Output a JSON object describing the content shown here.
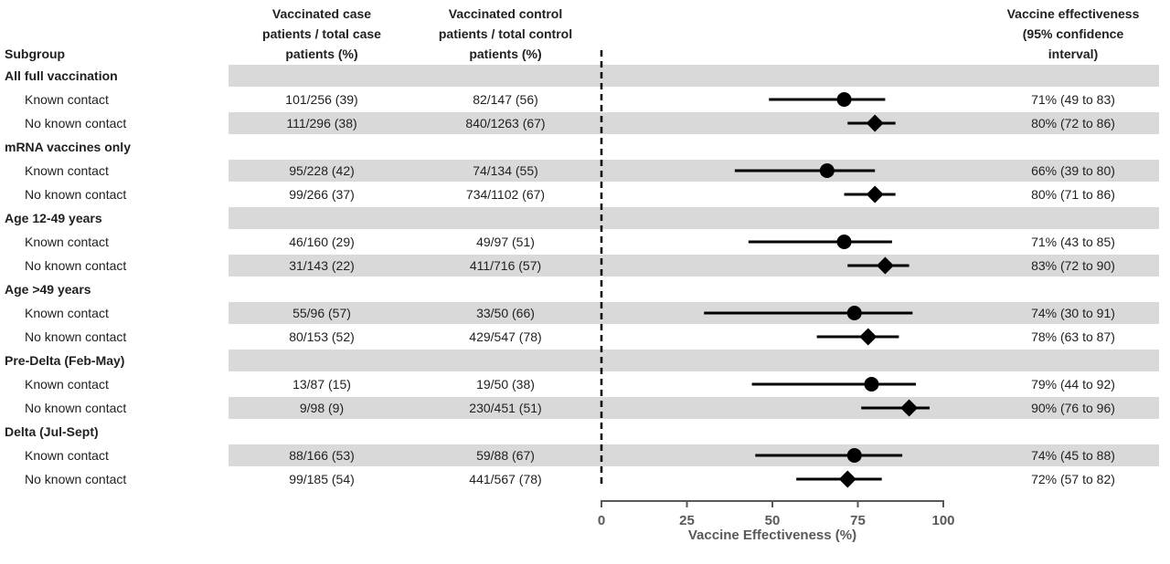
{
  "chart_data": {
    "type": "forest",
    "title_columns": {
      "subgroup": "Subgroup",
      "case": [
        "Vaccinated case",
        "patients / total case",
        "patients (%)"
      ],
      "control": [
        "Vaccinated control",
        "patients / total control",
        "patients (%)"
      ],
      "ve": [
        "Vaccine effectiveness",
        "(95% confidence",
        "interval)"
      ]
    },
    "axis": {
      "label": "Vaccine Effectiveness (%)",
      "min": 0,
      "max": 100,
      "ticks": [
        0,
        25,
        50,
        75,
        100
      ],
      "reference_line": 0
    },
    "groups": [
      {
        "name": "All full vaccination",
        "rows": [
          {
            "label": "Known contact",
            "case": "101/256 (39)",
            "control": "82/147 (56)",
            "ve": 71,
            "ci_low": 49,
            "ci_high": 83,
            "ve_text": "71% (49 to 83)",
            "marker": "circle"
          },
          {
            "label": "No known contact",
            "case": "111/296 (38)",
            "control": "840/1263 (67)",
            "ve": 80,
            "ci_low": 72,
            "ci_high": 86,
            "ve_text": "80% (72 to 86)",
            "marker": "diamond"
          }
        ]
      },
      {
        "name": "mRNA vaccines only",
        "rows": [
          {
            "label": "Known contact",
            "case": "95/228 (42)",
            "control": "74/134 (55)",
            "ve": 66,
            "ci_low": 39,
            "ci_high": 80,
            "ve_text": "66% (39 to 80)",
            "marker": "circle"
          },
          {
            "label": "No known contact",
            "case": "99/266 (37)",
            "control": "734/1102 (67)",
            "ve": 80,
            "ci_low": 71,
            "ci_high": 86,
            "ve_text": "80% (71 to 86)",
            "marker": "diamond"
          }
        ]
      },
      {
        "name": "Age 12-49 years",
        "rows": [
          {
            "label": "Known contact",
            "case": "46/160 (29)",
            "control": "49/97 (51)",
            "ve": 71,
            "ci_low": 43,
            "ci_high": 85,
            "ve_text": "71% (43 to 85)",
            "marker": "circle"
          },
          {
            "label": "No known contact",
            "case": "31/143 (22)",
            "control": "411/716 (57)",
            "ve": 83,
            "ci_low": 72,
            "ci_high": 90,
            "ve_text": "83% (72 to 90)",
            "marker": "diamond"
          }
        ]
      },
      {
        "name": "Age >49 years",
        "rows": [
          {
            "label": "Known contact",
            "case": "55/96 (57)",
            "control": "33/50 (66)",
            "ve": 74,
            "ci_low": 30,
            "ci_high": 91,
            "ve_text": "74% (30 to 91)",
            "marker": "circle"
          },
          {
            "label": "No known contact",
            "case": "80/153 (52)",
            "control": "429/547 (78)",
            "ve": 78,
            "ci_low": 63,
            "ci_high": 87,
            "ve_text": "78% (63 to 87)",
            "marker": "diamond"
          }
        ]
      },
      {
        "name": "Pre-Delta (Feb-May)",
        "rows": [
          {
            "label": "Known contact",
            "case": "13/87 (15)",
            "control": "19/50 (38)",
            "ve": 79,
            "ci_low": 44,
            "ci_high": 92,
            "ve_text": "79% (44 to 92)",
            "marker": "circle"
          },
          {
            "label": "No known contact",
            "case": "9/98 (9)",
            "control": "230/451 (51)",
            "ve": 90,
            "ci_low": 76,
            "ci_high": 96,
            "ve_text": "90% (76 to 96)",
            "marker": "diamond"
          }
        ]
      },
      {
        "name": "Delta (Jul-Sept)",
        "rows": [
          {
            "label": "Known contact",
            "case": "88/166 (53)",
            "control": "59/88 (67)",
            "ve": 74,
            "ci_low": 45,
            "ci_high": 88,
            "ve_text": "74% (45 to 88)",
            "marker": "circle"
          },
          {
            "label": "No known contact",
            "case": "99/185 (54)",
            "control": "441/567 (78)",
            "ve": 72,
            "ci_low": 57,
            "ci_high": 82,
            "ve_text": "72% (57 to 82)",
            "marker": "diamond"
          }
        ]
      }
    ],
    "colors": {
      "band": "#d9d9d9",
      "marker": "#000000",
      "ci_line": "#000000",
      "reference_line": "#000000",
      "text": "#212121",
      "axis_text": "#595959"
    }
  }
}
